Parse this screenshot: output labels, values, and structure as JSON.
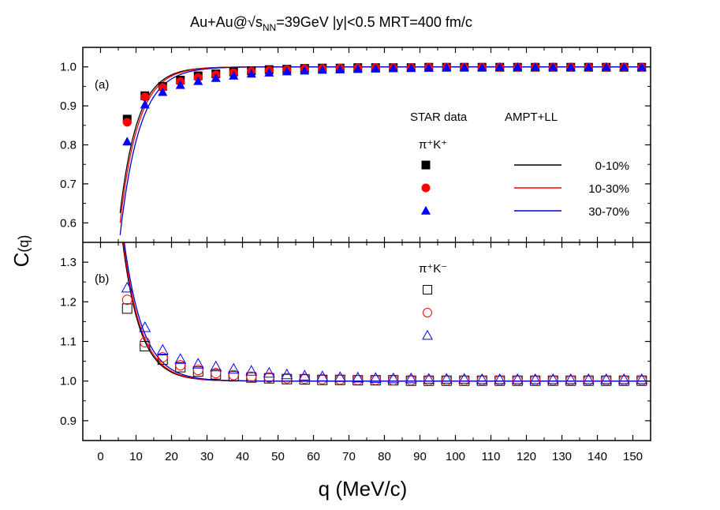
{
  "chart_data": {
    "type": "scatter",
    "title": "Au+Au@√s",
    "title_sub": "NN",
    "title_rest": "=39GeV |y|<0.5  MRT=400 fm/c",
    "xlabel": "q (MeV/c)",
    "ylabel_main": "C",
    "ylabel_sub": "(q)",
    "xlim": [
      -5,
      155
    ],
    "x_ticks": [
      0,
      10,
      20,
      30,
      40,
      50,
      60,
      70,
      80,
      90,
      100,
      110,
      120,
      130,
      140,
      150
    ],
    "x": [
      7.5,
      12.5,
      17.5,
      22.5,
      27.5,
      32.5,
      37.5,
      42.5,
      47.5,
      52.5,
      57.5,
      62.5,
      67.5,
      72.5,
      77.5,
      82.5,
      87.5,
      92.5,
      97.5,
      102.5,
      107.5,
      112.5,
      117.5,
      122.5,
      127.5,
      132.5,
      137.5,
      142.5,
      147.5,
      152.5
    ],
    "panels": [
      {
        "label": "(a)",
        "ylim": [
          0.55,
          1.05
        ],
        "y_ticks": [
          0.6,
          0.7,
          0.8,
          0.9,
          1.0
        ],
        "y_tick_labels": [
          "0.6",
          "0.7",
          "0.8",
          "0.9",
          "1.0"
        ],
        "legend_header_data": "STAR data",
        "legend_header_model": "AMPT+LL",
        "legend_pair": "π⁺K⁺",
        "series": [
          {
            "name": "0-10%",
            "marker": "square",
            "filled": true,
            "color": "#000000",
            "values": [
              0.866,
              0.926,
              0.95,
              0.966,
              0.977,
              0.982,
              0.987,
              0.99,
              0.993,
              0.994,
              0.996,
              0.997,
              0.997,
              0.998,
              0.998,
              0.998,
              0.998,
              0.999,
              0.999,
              0.999,
              0.999,
              0.999,
              0.999,
              0.999,
              0.999,
              0.999,
              0.999,
              0.999,
              0.999,
              0.999
            ]
          },
          {
            "name": "10-30%",
            "marker": "circle",
            "filled": true,
            "color": "#ff0000",
            "values": [
              0.858,
              0.923,
              0.947,
              0.962,
              0.973,
              0.98,
              0.985,
              0.989,
              0.991,
              0.993,
              0.995,
              0.996,
              0.997,
              0.997,
              0.998,
              0.998,
              0.998,
              0.999,
              0.999,
              0.999,
              0.999,
              0.999,
              0.999,
              0.999,
              0.999,
              0.999,
              0.999,
              0.999,
              0.999,
              0.999
            ]
          },
          {
            "name": "30-70%",
            "marker": "triangle",
            "filled": true,
            "color": "#0000ff",
            "values": [
              0.808,
              0.903,
              0.935,
              0.953,
              0.963,
              0.971,
              0.977,
              0.982,
              0.985,
              0.988,
              0.99,
              0.992,
              0.993,
              0.994,
              0.995,
              0.996,
              0.997,
              0.997,
              0.998,
              0.998,
              0.998,
              0.999,
              0.999,
              0.999,
              0.999,
              0.999,
              0.999,
              0.999,
              0.999,
              0.999
            ]
          }
        ],
        "curves": [
          {
            "name": "0-10%",
            "color": "#000000",
            "A": 0.92,
            "r": 0.2
          },
          {
            "name": "10-30%",
            "color": "#ff0000",
            "A": 0.98,
            "r": 0.195
          },
          {
            "name": "30-70%",
            "color": "#0000cc",
            "A": 1.05,
            "r": 0.182
          }
        ]
      },
      {
        "label": "(b)",
        "ylim": [
          0.85,
          1.35
        ],
        "y_ticks": [
          0.9,
          1.0,
          1.1,
          1.2,
          1.3
        ],
        "y_tick_labels": [
          "0.9",
          "1.0",
          "1.1",
          "1.2",
          "1.3"
        ],
        "legend_pair": "π⁺K⁻",
        "series": [
          {
            "name": "0-10%",
            "marker": "square",
            "filled": false,
            "color": "#000000",
            "values": [
              1.183,
              1.088,
              1.054,
              1.035,
              1.024,
              1.017,
              1.012,
              1.009,
              1.007,
              1.005,
              1.004,
              1.003,
              1.003,
              1.002,
              1.002,
              1.002,
              1.001,
              1.001,
              1.001,
              1.001,
              1.001,
              1.001,
              1.001,
              1.001,
              1.001,
              1.001,
              1.001,
              1.001,
              1.001,
              1.001
            ]
          },
          {
            "name": "10-30%",
            "marker": "circle",
            "filled": false,
            "color": "#ff0000",
            "values": [
              1.205,
              1.098,
              1.06,
              1.04,
              1.028,
              1.02,
              1.015,
              1.011,
              1.009,
              1.007,
              1.006,
              1.005,
              1.004,
              1.003,
              1.003,
              1.002,
              1.002,
              1.002,
              1.002,
              1.002,
              1.002,
              1.002,
              1.002,
              1.002,
              1.002,
              1.002,
              1.002,
              1.002,
              1.002,
              1.002
            ]
          },
          {
            "name": "30-70%",
            "marker": "triangle",
            "filled": false,
            "color": "#0000ff",
            "values": [
              1.235,
              1.135,
              1.078,
              1.055,
              1.043,
              1.036,
              1.03,
              1.025,
              1.02,
              1.016,
              1.013,
              1.011,
              1.009,
              1.008,
              1.007,
              1.006,
              1.006,
              1.005,
              1.005,
              1.005,
              1.004,
              1.004,
              1.004,
              1.004,
              1.004,
              1.004,
              1.004,
              1.004,
              1.004,
              1.004
            ]
          }
        ],
        "curves": [
          {
            "name": "0-10%",
            "color": "#000000",
            "A": 1.6,
            "r": 0.2
          },
          {
            "name": "10-30%",
            "color": "#ff0000",
            "A": 1.65,
            "r": 0.195
          },
          {
            "name": "30-70%",
            "color": "#0000cc",
            "A": 1.7,
            "r": 0.185
          }
        ]
      }
    ],
    "legend_labels": [
      "0-10%",
      "10-30%",
      "30-70%"
    ]
  }
}
